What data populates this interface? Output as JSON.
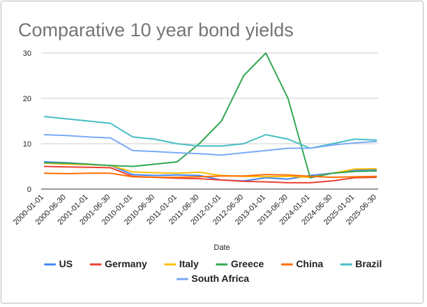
{
  "chart_data": {
    "type": "line",
    "title": "Comparative 10 year bond yields",
    "xlabel": "Date",
    "ylabel": "",
    "ylim": [
      0,
      30
    ],
    "yticks": [
      "0",
      "10",
      "20",
      "30"
    ],
    "grid": true,
    "legend_position": "bottom",
    "categories": [
      "2000-01-01",
      "2000-06-30",
      "2001-01-01",
      "2001-06-30",
      "2010-01-01",
      "2010-06-30",
      "2011-01-01",
      "2011-06-30",
      "2012-01-01",
      "2012-06-30",
      "2013-01-01",
      "2013-06-30",
      "2024-01-01",
      "2024-06-30",
      "2025-01-01",
      "2025-06-30"
    ],
    "series": [
      {
        "name": "US",
        "color": "#4285f4",
        "values": [
          6.0,
          5.8,
          5.5,
          5.2,
          3.2,
          3.0,
          3.1,
          3.0,
          2.0,
          1.8,
          2.5,
          2.2,
          3.0,
          3.5,
          4.2,
          4.3
        ]
      },
      {
        "name": "Germany",
        "color": "#ea4335",
        "values": [
          5.0,
          4.9,
          4.8,
          4.7,
          2.8,
          2.6,
          2.4,
          2.3,
          2.0,
          1.7,
          1.6,
          1.4,
          1.4,
          1.8,
          2.5,
          2.6
        ]
      },
      {
        "name": "Italy",
        "color": "#fbbc04",
        "values": [
          5.7,
          5.5,
          5.4,
          5.2,
          3.8,
          3.6,
          3.5,
          3.7,
          3.0,
          2.8,
          2.7,
          2.8,
          2.6,
          3.5,
          4.4,
          4.5
        ]
      },
      {
        "name": "Greece",
        "color": "#34a853",
        "values": [
          5.8,
          5.7,
          5.5,
          5.2,
          5.0,
          5.5,
          6.0,
          10.0,
          15.0,
          25.0,
          30.0,
          20.0,
          2.5,
          3.5,
          3.9,
          4.0
        ]
      },
      {
        "name": "China",
        "color": "#ff6d01",
        "values": [
          3.5,
          3.4,
          3.5,
          3.5,
          2.7,
          2.6,
          2.6,
          2.7,
          2.9,
          2.9,
          3.2,
          3.1,
          2.8,
          2.6,
          2.7,
          2.8
        ]
      },
      {
        "name": "Brazil",
        "color": "#46bdc6",
        "values": [
          16.0,
          15.5,
          15.0,
          14.5,
          11.5,
          11.0,
          10.0,
          9.5,
          9.5,
          10.0,
          12.0,
          11.0,
          9.0,
          10.0,
          11.0,
          10.8
        ]
      },
      {
        "name": "South Africa",
        "color": "#7baaf7",
        "values": [
          12.0,
          11.8,
          11.5,
          11.3,
          8.5,
          8.3,
          8.0,
          7.8,
          7.5,
          8.0,
          8.5,
          9.0,
          9.0,
          9.7,
          10.2,
          10.5
        ]
      }
    ]
  }
}
